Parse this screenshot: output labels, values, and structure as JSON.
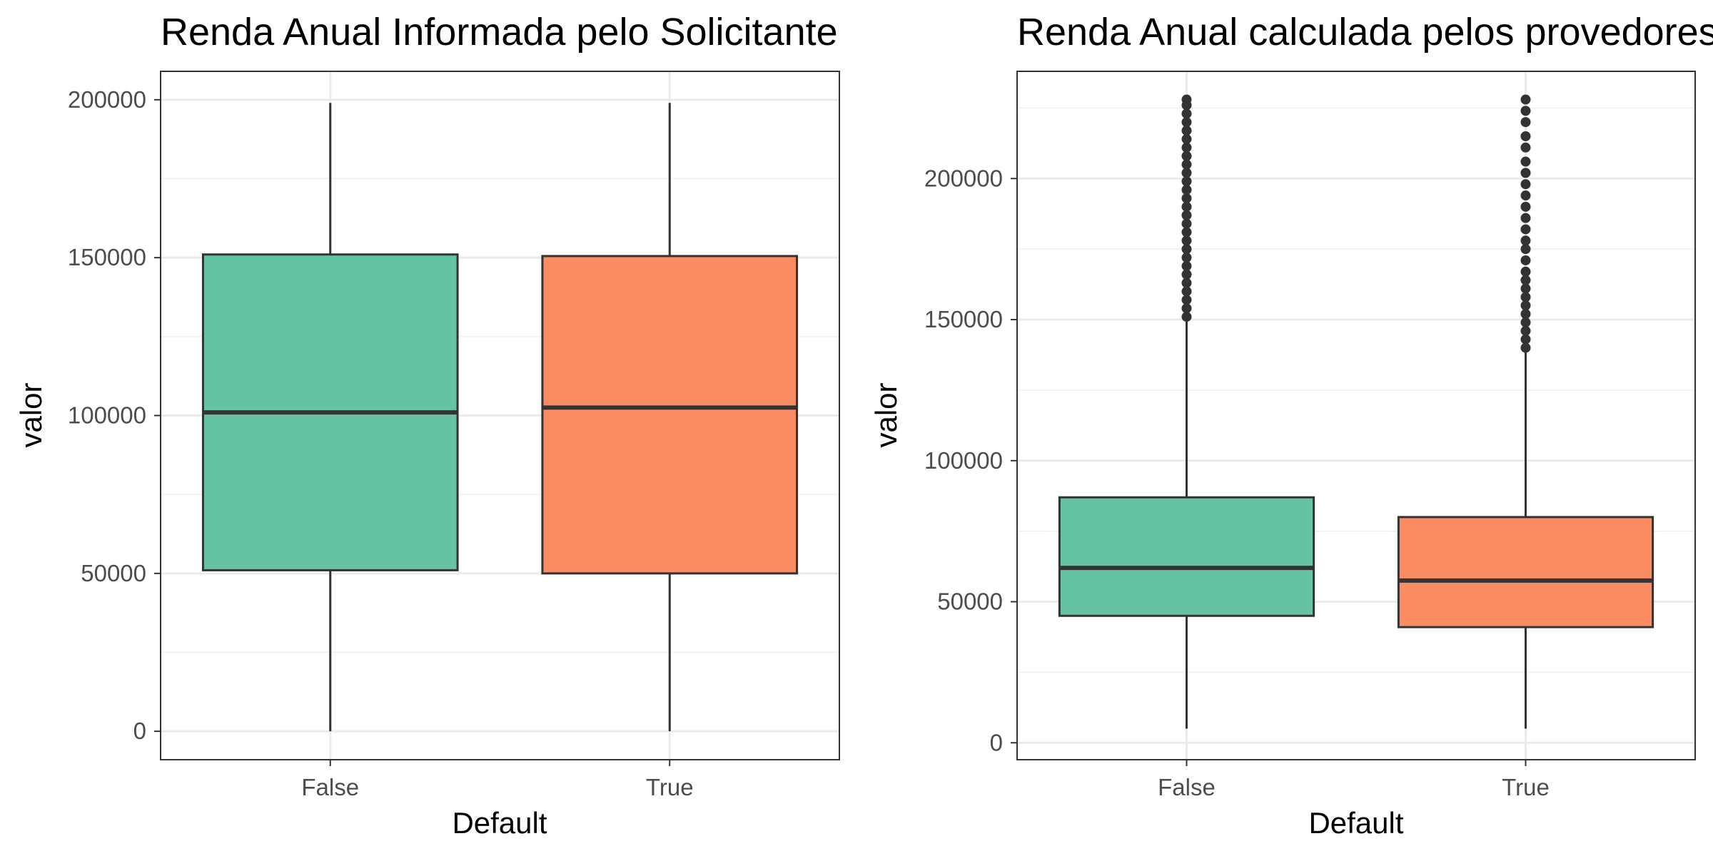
{
  "chart_data": [
    {
      "type": "boxplot",
      "title": "Renda Anual Informada pelo Solicitante",
      "xlabel": "Default",
      "ylabel": "valor",
      "categories": [
        "False",
        "True"
      ],
      "ylim": [
        -9000,
        209000
      ],
      "yticks": [
        0,
        50000,
        100000,
        150000,
        200000
      ],
      "tick_labels": [
        "0",
        "50000",
        "100000",
        "150000",
        "200000"
      ],
      "grid": true,
      "boxes": [
        {
          "category": "False",
          "color": "#66c2a5",
          "whisker_low": 0,
          "q1": 51000,
          "median": 101000,
          "q3": 151000,
          "whisker_high": 199000,
          "outliers": []
        },
        {
          "category": "True",
          "color": "#fc8d62",
          "whisker_low": 0,
          "q1": 50000,
          "median": 102500,
          "q3": 150500,
          "whisker_high": 199000,
          "outliers": []
        }
      ]
    },
    {
      "type": "boxplot",
      "title": "Renda Anual calculada pelos provedores",
      "xlabel": "Default",
      "ylabel": "valor",
      "categories": [
        "False",
        "True"
      ],
      "ylim": [
        -6000,
        238000
      ],
      "yticks": [
        0,
        50000,
        100000,
        150000,
        200000
      ],
      "tick_labels": [
        "0",
        "50000",
        "100000",
        "150000",
        "200000"
      ],
      "grid": true,
      "boxes": [
        {
          "category": "False",
          "color": "#66c2a5",
          "whisker_low": 5000,
          "q1": 45000,
          "median": 62000,
          "q3": 87000,
          "whisker_high": 150000,
          "outliers": [
            151000,
            154000,
            157000,
            160000,
            163000,
            166000,
            169000,
            172000,
            175000,
            178000,
            181000,
            184000,
            187000,
            190000,
            193000,
            196000,
            199000,
            202000,
            205000,
            208000,
            211000,
            214000,
            217000,
            220000,
            223000,
            226000,
            228000
          ]
        },
        {
          "category": "True",
          "color": "#fc8d62",
          "whisker_low": 5000,
          "q1": 41000,
          "median": 57500,
          "q3": 80000,
          "whisker_high": 139000,
          "outliers": [
            140000,
            143000,
            146000,
            149000,
            152000,
            155000,
            158000,
            161000,
            164000,
            167000,
            171000,
            175000,
            178000,
            182000,
            186000,
            190000,
            194000,
            198000,
            202000,
            206000,
            211000,
            215000,
            220000,
            224000,
            228000
          ]
        }
      ]
    }
  ]
}
